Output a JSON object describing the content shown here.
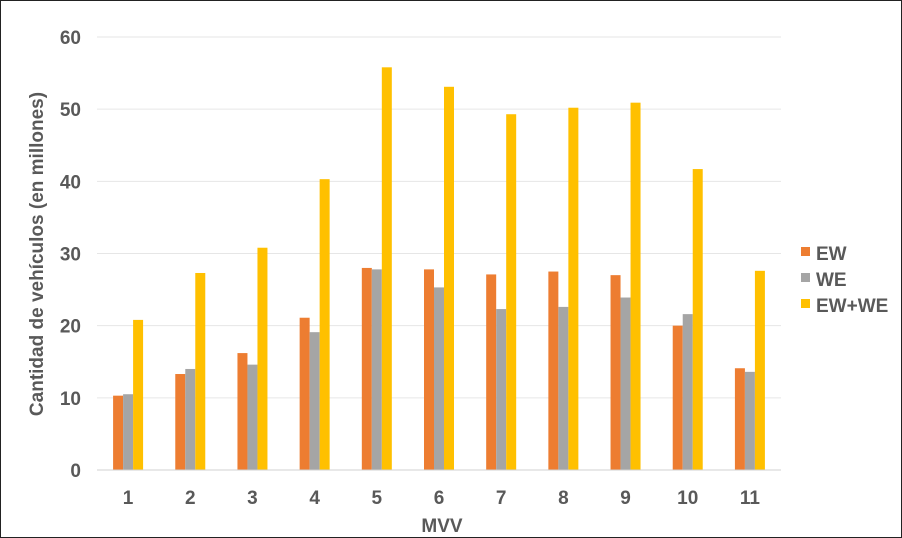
{
  "chart_data": {
    "type": "bar",
    "xlabel": "MVV",
    "ylabel": "Cantidad de vehículos (en millones)",
    "ylim": [
      0,
      60
    ],
    "yticks": [
      0,
      10,
      20,
      30,
      40,
      50,
      60
    ],
    "grid": true,
    "legend_position": "right",
    "categories": [
      "1",
      "2",
      "3",
      "4",
      "5",
      "6",
      "7",
      "8",
      "9",
      "10",
      "11"
    ],
    "series": [
      {
        "name": "EW",
        "color": "#ED7D31",
        "values": [
          10.3,
          13.3,
          16.2,
          21.1,
          28.0,
          27.8,
          27.1,
          27.5,
          27.0,
          20.0,
          14.1
        ]
      },
      {
        "name": "WE",
        "color": "#A5A5A5",
        "values": [
          10.5,
          14.0,
          14.6,
          19.1,
          27.8,
          25.3,
          22.3,
          22.6,
          23.9,
          21.6,
          13.6
        ]
      },
      {
        "name": "EW+WE",
        "color": "#FFC000",
        "values": [
          20.8,
          27.3,
          30.8,
          40.3,
          55.8,
          53.1,
          49.3,
          50.2,
          50.9,
          41.7,
          27.6
        ]
      }
    ]
  }
}
